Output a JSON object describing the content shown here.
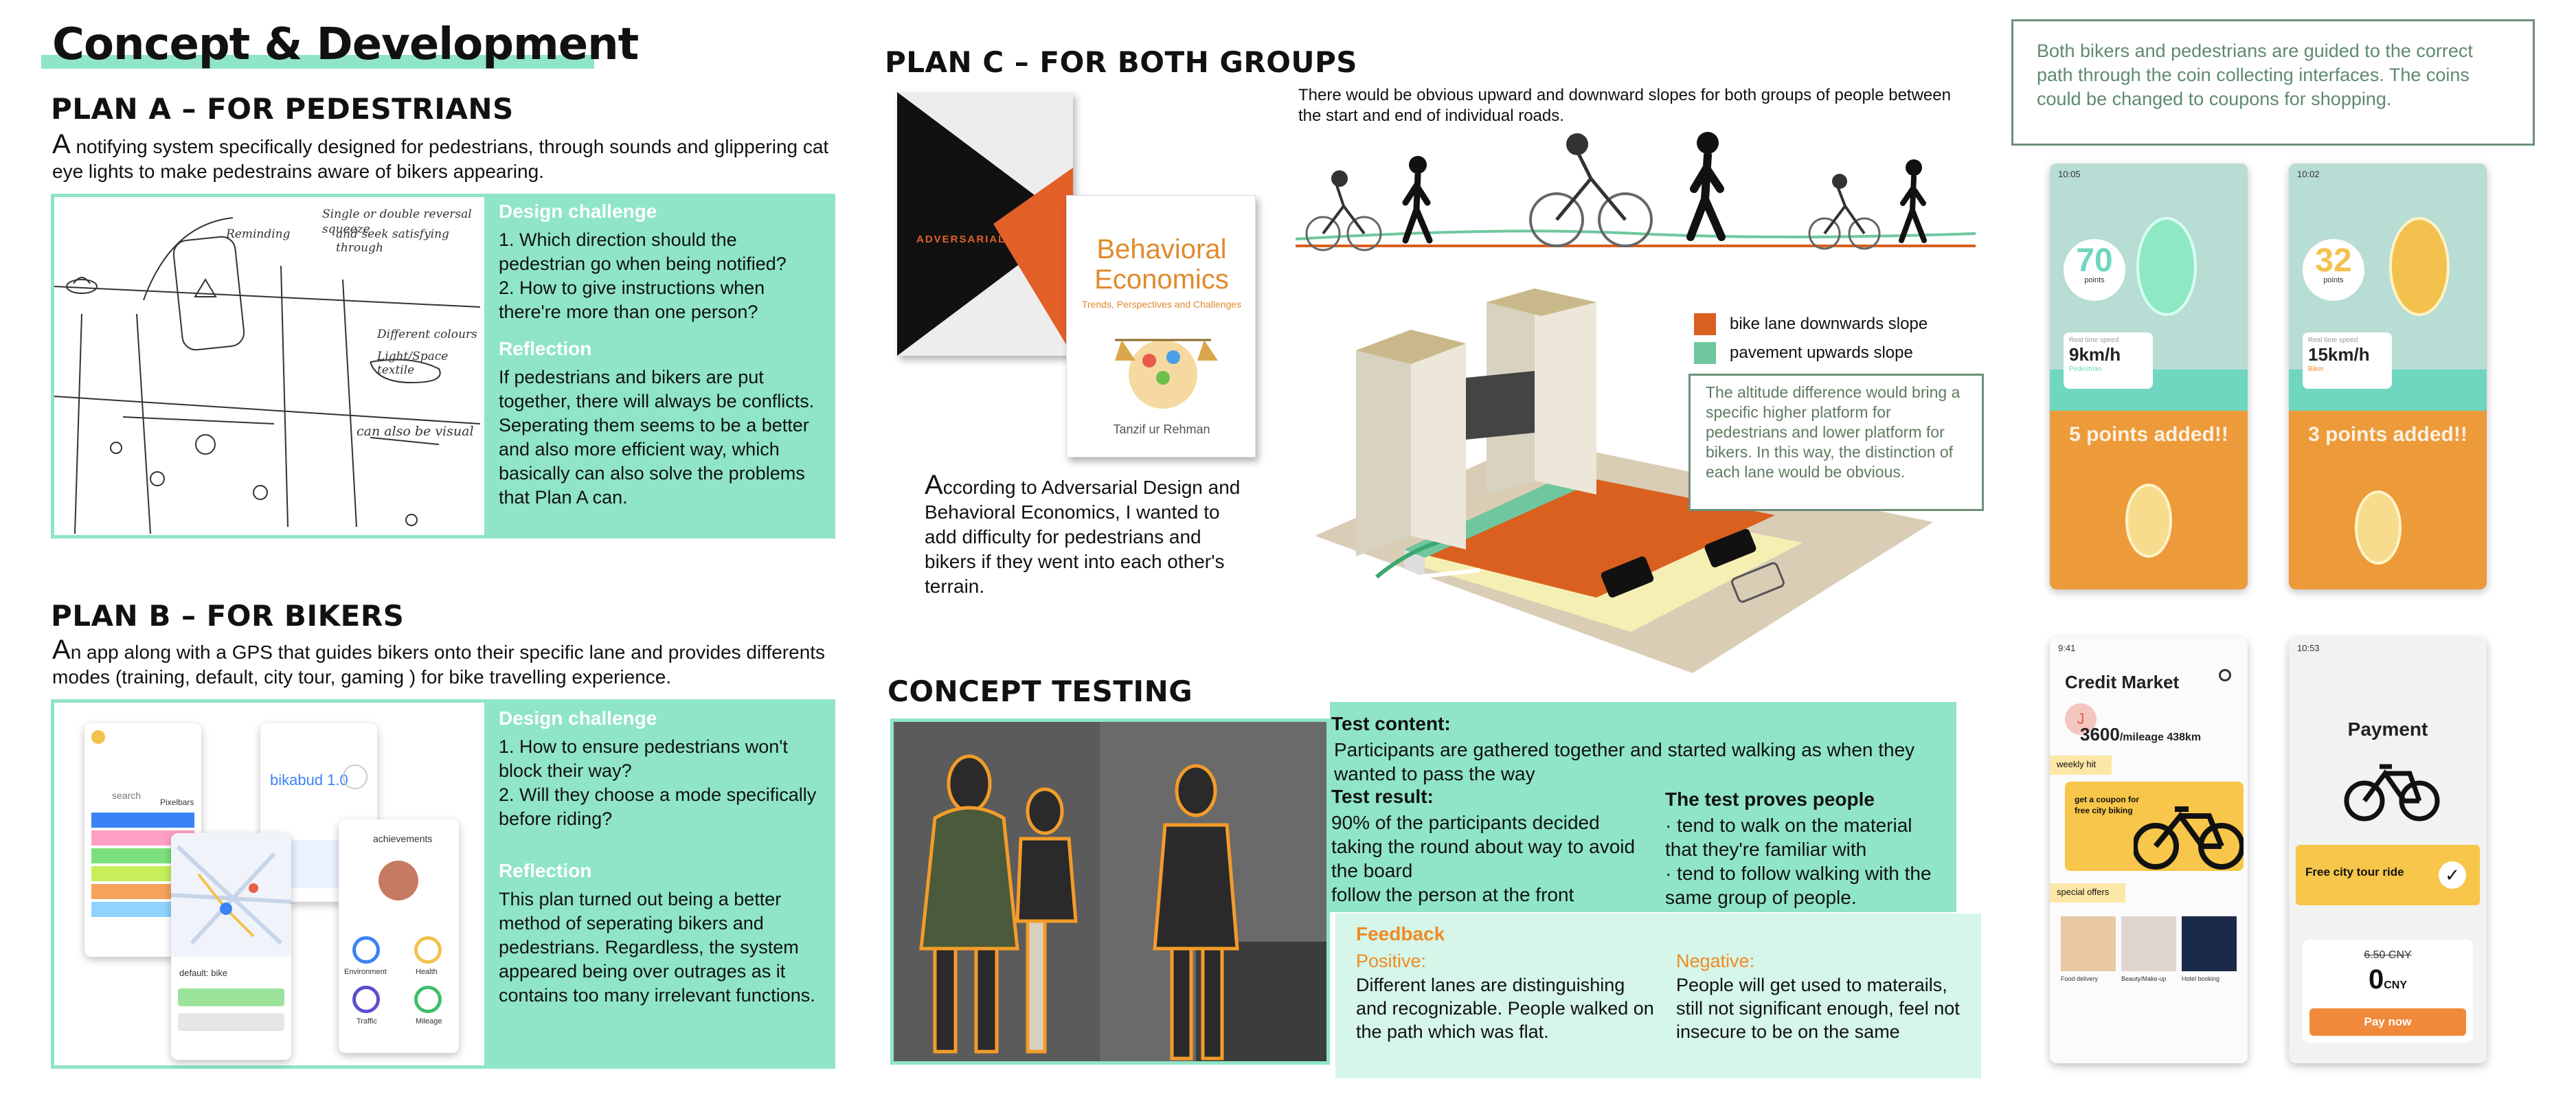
{
  "header": {
    "title": "Concept & Development"
  },
  "plan_a": {
    "title": "PLAN A – FOR PEDESTRIANS",
    "drop": "A",
    "intro": " notifying system specifically designed for pedestrians, through sounds and glippering cat eye lights to make pedestrains aware of bikers appearing.",
    "sketch_notes": [
      "Single or double reversal squeeze",
      "Reminding",
      "and seek satisfying through",
      "Different colours",
      "Light/Space textile",
      "can also be visual"
    ],
    "challenge_title": "Design challenge",
    "challenge_text": "1. Which direction should the pedestrian go when being notified?\n2. How to give instructions when there're more than one person?",
    "reflection_title": "Reflection",
    "reflection_text": "If pedestrians and bikers are put together, there will always be conflicts. Seperating them seems to be a better and also more efficient way, which basically can also solve the problems that Plan A can."
  },
  "plan_b": {
    "title": "PLAN B – FOR BIKERS",
    "drop": "A",
    "intro": "n app along with a GPS that guides bikers onto their specific lane and provides differents modes (training, default, city tour, gaming ) for bike travelling experience.",
    "app_texts": [
      "search",
      "Pixelbars",
      "bikabud 1.0",
      "achievements",
      "default: bike",
      "Environment",
      "Health",
      "Traffic",
      "Mileage"
    ],
    "challenge_title": "Design challenge",
    "challenge_text": "1. How to ensure pedestrians won't block their way?\n2. Will they choose a mode specifically before riding?",
    "reflection_title": "Reflection",
    "reflection_text": "This plan turned out being a better method of seperating bikers and pedestrians. Regardless, the system appeared being over outrages as it contains too many irrelevant functions."
  },
  "plan_c": {
    "title": "PLAN C – FOR BOTH GROUPS",
    "book1_title": "ADVERSARIAL DESIGN",
    "book2_title": "Behavioral Economics",
    "book2_subtitle": "Trends, Perspectives and Challenges",
    "book2_author": "Tanzif ur Rehman",
    "drop": "A",
    "text": "ccording to Adversarial Design and Behavioral Economics, I wanted to add difficulty for pedestrians and bikers if they went into each other's terrain.",
    "slopes_text": "There would be obvious upward and downward slopes for both groups of people between the start and end of individual roads.",
    "legend": [
      {
        "label": "bike lane downwards slope",
        "color": "#d9601f"
      },
      {
        "label": "pavement upwards slope",
        "color": "#6fc79f"
      }
    ],
    "altitude_note": "The altitude difference would bring a specific higher platform for pedestrians and lower platform for bikers. In this way, the distinction of each lane would be obvious."
  },
  "concept_testing": {
    "title": "CONCEPT TESTING",
    "content_label": "Test content:",
    "content_text": "Participants are gathered together and started walking as when they wanted to pass the way",
    "result_label": "Test result:",
    "result_text": "90% of the participants decided taking the round about way to avoid the board\nfollow the person at the front",
    "proves_label": "The test proves people",
    "proves_text": "· tend to walk on the material that they're familiar with\n· tend to follow walking with the same group of people.",
    "feedback_label": "Feedback",
    "positive_label": "Positive:",
    "positive_text": "Different lanes are distinguishing and recognizable. People walked on the path which was flat.",
    "negative_label": "Negative:",
    "negative_text": "People will get used to materails, still not significant enough, feel not insecure to be on the same"
  },
  "right": {
    "note": "Both bikers and pedestrians are guided to the correct path through the coin collecting interfaces. The coins could be changed to coupons for shopping.",
    "phone1": {
      "time": "10:05",
      "points": "70",
      "points_label": "points",
      "speed_label": "Real time speed",
      "speed": "9km/h",
      "mode": "Pedestrian",
      "added": "5 points added!!"
    },
    "phone2": {
      "time": "10:02",
      "points": "32",
      "points_label": "points",
      "speed_label": "Real time speed",
      "speed": "15km/h",
      "mode": "Biker",
      "added": "3 points added!!"
    },
    "phone3": {
      "time": "9:41",
      "title": "Credit Market",
      "avatar": "J",
      "mileage": "3600",
      "mileage_suffix": "/mileage 438km",
      "weekly": "weekly hit",
      "coupon": "get a coupon for free city biking",
      "special": "special offers",
      "offers": [
        "Food delivery",
        "Beauty/Make-up",
        "Hotel booking"
      ]
    },
    "phone4": {
      "time": "10:53",
      "title": "Payment",
      "ride": "Free city tour ride",
      "old_price": "6.50 CNY",
      "price": "0",
      "currency": "CNY",
      "pay": "Pay now"
    }
  },
  "colors": {
    "mint": "#8fe5c6",
    "orange": "#f08a24",
    "green_note": "#5e8a6e"
  }
}
